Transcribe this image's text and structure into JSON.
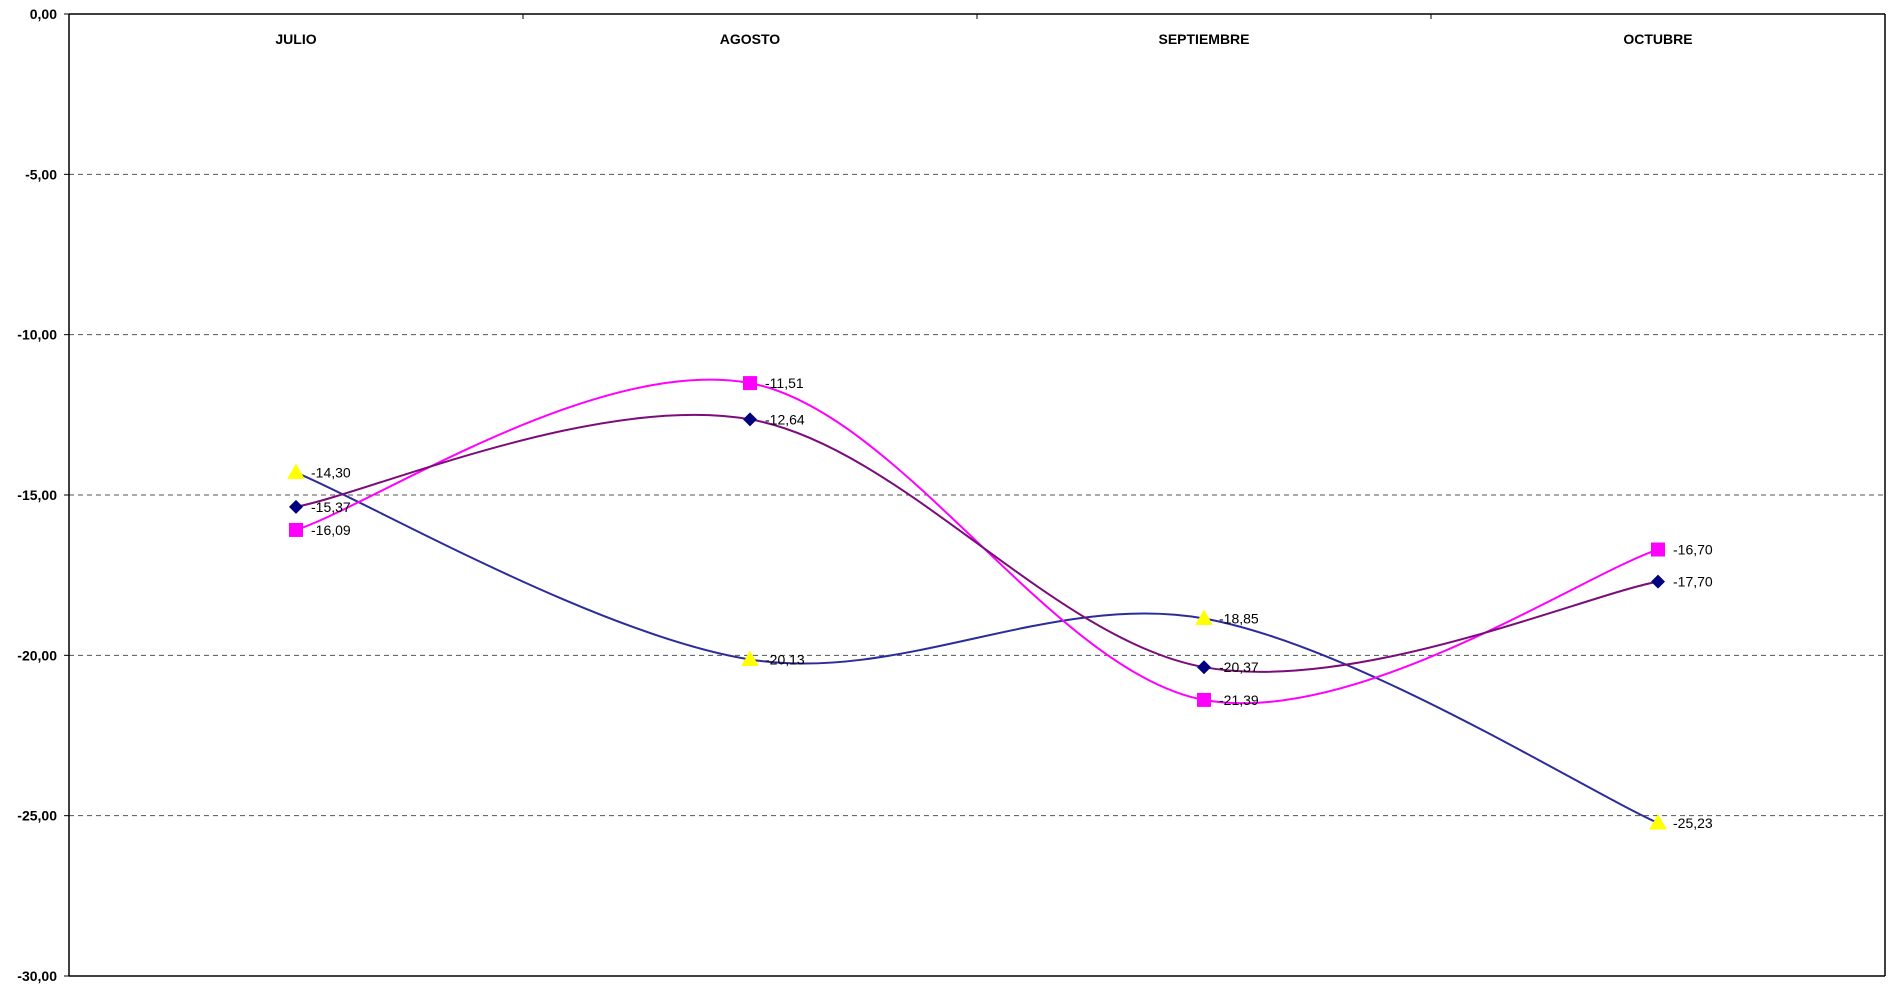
{
  "chart_data": {
    "type": "line",
    "categories": [
      "JULIO",
      "AGOSTO",
      "SEPTIEMBRE",
      "OCTUBRE"
    ],
    "ylim": [
      -30,
      0
    ],
    "y_ticks": [
      0,
      -5,
      -10,
      -15,
      -20,
      -25,
      -30
    ],
    "y_tick_labels": [
      "0,00",
      "-5,00",
      "-10,00",
      "-15,00",
      "-20,00",
      "-25,00",
      "-30,00"
    ],
    "category_axis_position": "top",
    "grid": "horizontal-dashed",
    "legend": "none",
    "smooth": true,
    "series": [
      {
        "marker": "triangle",
        "line_color": "#2b2b9b",
        "marker_color": "#ffff00",
        "values": [
          -14.3,
          -20.13,
          -18.85,
          -25.23
        ],
        "labels": [
          "-14,30",
          "-20,13",
          "-18,85",
          "-25,23"
        ]
      },
      {
        "marker": "square",
        "line_color": "#ff00ff",
        "marker_color": "#ff00ff",
        "values": [
          -16.09,
          -11.51,
          -21.39,
          -16.7
        ],
        "labels": [
          "-16,09",
          "-11,51",
          "-21,39",
          "-16,70"
        ]
      },
      {
        "marker": "diamond",
        "line_color": "#7a0d7a",
        "marker_color": "#000080",
        "values": [
          -15.37,
          -12.64,
          -20.37,
          -17.7
        ],
        "labels": [
          "-15,37",
          "-12,64",
          "-20,37",
          "-17,70"
        ]
      }
    ]
  }
}
